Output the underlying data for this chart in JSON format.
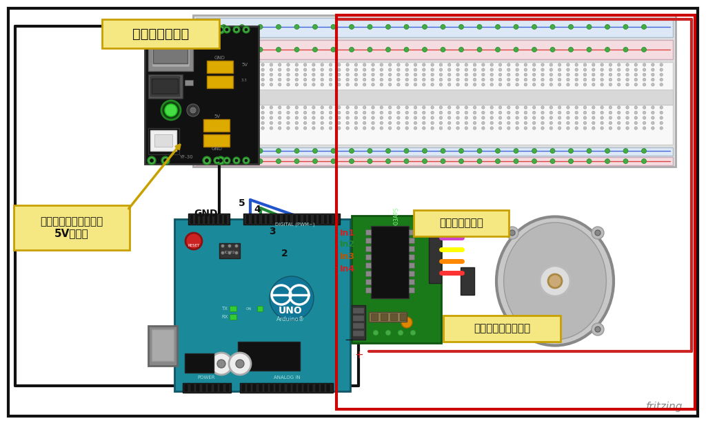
{
  "bg_color": "#ffffff",
  "labels": {
    "dengen": "電源モジュール",
    "jumper": "ジャンパピンの位置を\n5Vにする",
    "gnd": "GND",
    "motor_driver": "モータドライバ",
    "stepping": "ステッピングモータ",
    "in1": "In1",
    "in2": "In2",
    "in3": "In3",
    "in4": "In4",
    "pin2": "2",
    "pin3": "3",
    "pin4": "4",
    "pin5": "5",
    "minus": "−",
    "plus": "+",
    "fritzing": "fritzing"
  },
  "colors": {
    "border_black": "#111111",
    "border_red": "#cc0000",
    "arduino_teal": "#1a8a9a",
    "label_bg_yellow": "#f5e882",
    "label_border": "#c8a000",
    "wire_black": "#111111",
    "wire_blue": "#2255cc",
    "wire_green": "#228833",
    "wire_yellow": "#ccbb00",
    "wire_orange": "#bb5500",
    "wire_red": "#cc2222",
    "in1_color": "#cc2222",
    "in2_color": "#228833",
    "in3_color": "#bb5500",
    "in4_color": "#cc2222"
  }
}
